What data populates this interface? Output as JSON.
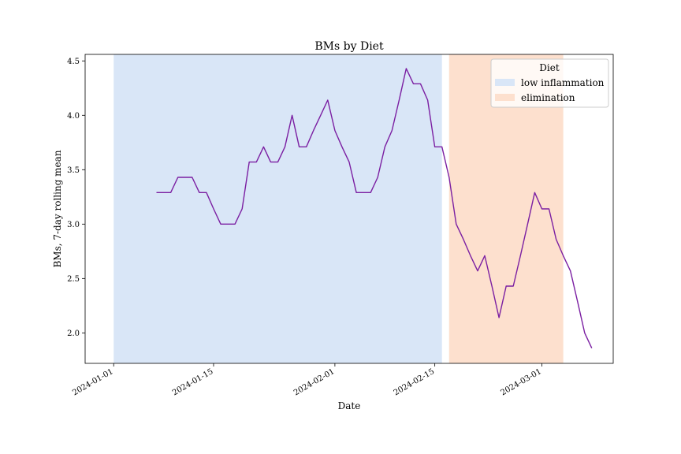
{
  "chart_data": {
    "type": "line",
    "title": "BMs by Diet",
    "xlabel": "Date",
    "ylabel": "BMs, 7-day rolling mean",
    "xlim": [
      "2023-12-28",
      "2024-03-11"
    ],
    "ylim": [
      1.72,
      4.56
    ],
    "x_ticks": [
      "2024-01-01",
      "2024-01-15",
      "2024-02-01",
      "2024-02-15",
      "2024-03-01"
    ],
    "y_ticks": [
      2.0,
      2.5,
      3.0,
      3.5,
      4.0,
      4.5
    ],
    "y_tick_labels": [
      "2.0",
      "2.5",
      "3.0",
      "3.5",
      "4.0",
      "4.5"
    ],
    "grid": false,
    "legend": {
      "title": "Diet",
      "placement": "top-right",
      "entries": [
        "low inflammation",
        "elimination"
      ]
    },
    "spans": [
      {
        "name": "low inflammation",
        "start": "2024-01-01",
        "end": "2024-02-16",
        "color": "#d9e6f7"
      },
      {
        "name": "elimination",
        "start": "2024-02-17",
        "end": "2024-03-04",
        "color": "#fde0ce"
      }
    ],
    "series": [
      {
        "color": "#7b1fa2",
        "x": [
          "2024-01-07",
          "2024-01-08",
          "2024-01-09",
          "2024-01-10",
          "2024-01-11",
          "2024-01-12",
          "2024-01-13",
          "2024-01-14",
          "2024-01-15",
          "2024-01-16",
          "2024-01-17",
          "2024-01-18",
          "2024-01-19",
          "2024-01-20",
          "2024-01-21",
          "2024-01-22",
          "2024-01-23",
          "2024-01-24",
          "2024-01-25",
          "2024-01-26",
          "2024-01-27",
          "2024-01-28",
          "2024-01-29",
          "2024-01-30",
          "2024-01-31",
          "2024-02-01",
          "2024-02-02",
          "2024-02-03",
          "2024-02-04",
          "2024-02-05",
          "2024-02-06",
          "2024-02-07",
          "2024-02-08",
          "2024-02-09",
          "2024-02-10",
          "2024-02-11",
          "2024-02-12",
          "2024-02-13",
          "2024-02-14",
          "2024-02-15",
          "2024-02-16",
          "2024-02-17",
          "2024-02-18",
          "2024-02-19",
          "2024-02-20",
          "2024-02-21",
          "2024-02-22",
          "2024-02-23",
          "2024-02-24",
          "2024-02-25",
          "2024-02-26",
          "2024-02-27",
          "2024-02-28",
          "2024-02-29",
          "2024-03-01",
          "2024-03-02",
          "2024-03-03",
          "2024-03-04",
          "2024-03-05",
          "2024-03-06",
          "2024-03-07",
          "2024-03-08"
        ],
        "values": [
          3.29,
          3.29,
          3.29,
          3.43,
          3.43,
          3.43,
          3.29,
          3.29,
          3.14,
          3.0,
          3.0,
          3.0,
          3.14,
          3.57,
          3.57,
          3.71,
          3.57,
          3.57,
          3.71,
          4.0,
          3.71,
          3.71,
          3.86,
          4.0,
          4.14,
          3.86,
          3.71,
          3.57,
          3.29,
          3.29,
          3.29,
          3.43,
          3.71,
          3.86,
          4.14,
          4.43,
          4.29,
          4.29,
          4.14,
          3.71,
          3.71,
          3.43,
          3.0,
          2.86,
          2.71,
          2.57,
          2.71,
          2.43,
          2.14,
          2.43,
          2.43,
          2.71,
          3.0,
          3.29,
          3.14,
          3.14,
          2.86,
          2.71,
          2.57,
          2.29,
          2.0,
          1.86
        ]
      }
    ]
  }
}
